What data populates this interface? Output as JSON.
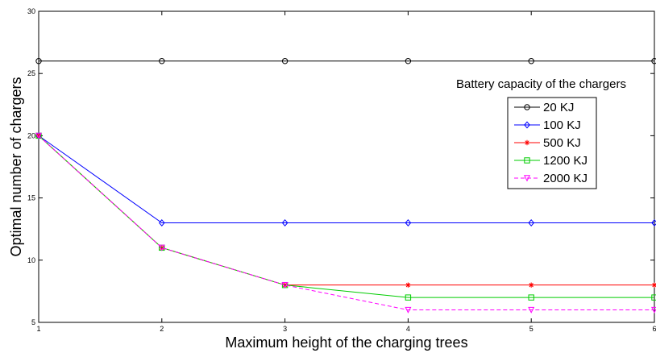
{
  "chart_data": {
    "type": "line",
    "title": "",
    "xlabel": "Maximum height of the charging trees",
    "ylabel": "Optimal number of chargers",
    "x": [
      1,
      2,
      3,
      4,
      5,
      6
    ],
    "xlim": [
      1,
      6
    ],
    "ylim": [
      5,
      30
    ],
    "xticks": [
      1,
      2,
      3,
      4,
      5,
      6
    ],
    "yticks": [
      5,
      10,
      15,
      20,
      25,
      30
    ],
    "grid": false,
    "legend_title": "Battery capacity of the chargers",
    "legend_position": "right",
    "series": [
      {
        "name": "20 KJ",
        "values": [
          26,
          26,
          26,
          26,
          26,
          26
        ],
        "color": "#000000",
        "marker": "circle",
        "dash": "solid"
      },
      {
        "name": "100 KJ",
        "values": [
          20,
          13,
          13,
          13,
          13,
          13
        ],
        "color": "#0000ff",
        "marker": "diamond",
        "dash": "solid"
      },
      {
        "name": "500 KJ",
        "values": [
          20,
          11,
          8,
          8,
          8,
          8
        ],
        "color": "#ff0000",
        "marker": "star",
        "dash": "solid"
      },
      {
        "name": "1200 KJ",
        "values": [
          20,
          11,
          8,
          7,
          7,
          7
        ],
        "color": "#00cc00",
        "marker": "square",
        "dash": "solid"
      },
      {
        "name": "2000 KJ",
        "values": [
          20,
          11,
          8,
          6,
          6,
          6
        ],
        "color": "#ff00ff",
        "marker": "triangle-down",
        "dash": "dashed"
      }
    ]
  }
}
